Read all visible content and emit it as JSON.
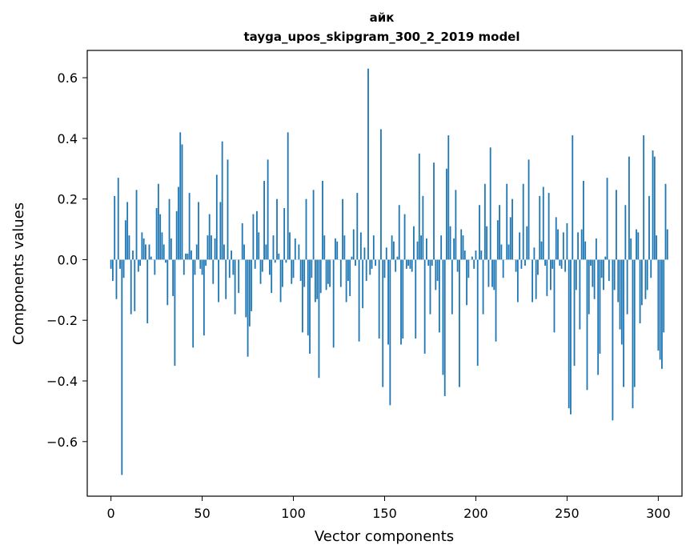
{
  "chart_data": {
    "type": "bar",
    "title_line1": "айк",
    "title_line2": "tayga_upos_skipgram_300_2_2019 model",
    "xlabel": "Vector components",
    "ylabel": "Components values",
    "xlim": [
      -13,
      313
    ],
    "ylim": [
      -0.78,
      0.69
    ],
    "xticks": [
      0,
      50,
      100,
      150,
      200,
      250,
      300
    ],
    "xtick_labels": [
      "0",
      "50",
      "100",
      "150",
      "200",
      "250",
      "300"
    ],
    "yticks": [
      -0.6,
      -0.4,
      -0.2,
      0.0,
      0.2,
      0.4,
      0.6
    ],
    "ytick_labels": [
      "−0.6",
      "−0.4",
      "−0.2",
      "0.0",
      "0.2",
      "0.4",
      "0.6"
    ],
    "bar_color": "#1f77b4",
    "grid": false,
    "values": [
      -0.03,
      -0.07,
      0.21,
      -0.13,
      0.27,
      -0.03,
      -0.71,
      -0.06,
      0.13,
      0.19,
      0.08,
      -0.18,
      0.03,
      -0.17,
      0.23,
      -0.04,
      -0.02,
      0.09,
      0.07,
      0.05,
      -0.21,
      0.05,
      0.01,
      0.0,
      -0.05,
      0.17,
      0.25,
      0.15,
      0.09,
      0.05,
      -0.01,
      -0.15,
      0.2,
      0.07,
      -0.12,
      -0.35,
      0.16,
      0.24,
      0.42,
      0.38,
      -0.05,
      0.02,
      0.02,
      0.22,
      0.03,
      -0.29,
      -0.05,
      0.05,
      0.19,
      -0.03,
      -0.05,
      -0.25,
      -0.02,
      0.08,
      0.15,
      0.08,
      -0.08,
      0.07,
      0.28,
      -0.14,
      0.19,
      0.39,
      0.05,
      -0.13,
      0.33,
      -0.06,
      0.03,
      -0.05,
      -0.18,
      0.0,
      -0.11,
      0.0,
      0.12,
      0.05,
      -0.19,
      -0.32,
      -0.22,
      -0.17,
      0.15,
      -0.03,
      0.16,
      0.09,
      -0.08,
      -0.04,
      0.26,
      0.05,
      0.33,
      -0.05,
      -0.11,
      0.08,
      -0.01,
      0.2,
      0.02,
      -0.14,
      -0.09,
      0.17,
      -0.01,
      0.42,
      0.09,
      -0.08,
      -0.06,
      0.07,
      0.0,
      0.05,
      -0.07,
      -0.24,
      -0.09,
      0.2,
      -0.25,
      -0.31,
      -0.06,
      0.23,
      -0.14,
      -0.13,
      -0.39,
      -0.11,
      0.26,
      0.08,
      -0.1,
      -0.08,
      -0.09,
      0.0,
      -0.29,
      0.07,
      0.06,
      0.0,
      -0.09,
      0.2,
      0.08,
      -0.14,
      -0.07,
      -0.12,
      0.01,
      0.1,
      -0.02,
      0.22,
      -0.27,
      0.09,
      -0.16,
      0.04,
      -0.07,
      0.63,
      -0.05,
      -0.03,
      0.08,
      -0.02,
      0.0,
      -0.26,
      0.43,
      -0.42,
      -0.06,
      0.04,
      -0.28,
      -0.48,
      0.08,
      0.06,
      -0.04,
      0.01,
      0.18,
      -0.28,
      -0.26,
      0.15,
      -0.03,
      -0.02,
      -0.03,
      -0.04,
      0.11,
      -0.26,
      0.06,
      0.35,
      0.08,
      0.21,
      -0.31,
      0.07,
      -0.02,
      -0.18,
      -0.02,
      0.32,
      -0.1,
      -0.07,
      -0.24,
      0.08,
      -0.38,
      -0.45,
      0.3,
      0.41,
      0.11,
      -0.18,
      0.07,
      0.23,
      -0.04,
      -0.42,
      0.1,
      0.08,
      0.03,
      -0.15,
      -0.06,
      0.0,
      0.01,
      -0.03,
      0.03,
      -0.35,
      0.18,
      0.03,
      -0.18,
      0.25,
      0.11,
      -0.09,
      0.37,
      -0.09,
      -0.1,
      -0.27,
      0.13,
      0.18,
      0.05,
      -0.06,
      0.0,
      0.25,
      0.05,
      0.14,
      0.2,
      0.0,
      -0.04,
      -0.14,
      0.09,
      -0.03,
      0.25,
      -0.02,
      0.11,
      0.33,
      0.0,
      -0.14,
      0.04,
      -0.13,
      -0.05,
      0.21,
      0.06,
      0.24,
      -0.02,
      -0.12,
      0.22,
      -0.1,
      -0.03,
      -0.24,
      0.14,
      0.1,
      -0.02,
      -0.03,
      0.09,
      -0.04,
      0.12,
      -0.49,
      -0.51,
      0.41,
      -0.35,
      -0.1,
      0.09,
      -0.23,
      0.1,
      0.26,
      0.06,
      -0.43,
      -0.18,
      -0.02,
      -0.09,
      -0.13,
      0.07,
      -0.38,
      -0.31,
      -0.06,
      -0.1,
      0.01,
      0.27,
      -0.07,
      0.0,
      -0.53,
      -0.1,
      0.23,
      -0.14,
      -0.23,
      -0.28,
      -0.42,
      0.18,
      -0.18,
      0.34,
      0.07,
      -0.49,
      -0.42,
      0.1,
      0.09,
      -0.21,
      -0.15,
      0.41,
      -0.13,
      -0.1,
      0.21,
      -0.06,
      0.36,
      0.34,
      0.08,
      -0.3,
      -0.33,
      -0.36,
      -0.24,
      0.25,
      0.1
    ]
  }
}
